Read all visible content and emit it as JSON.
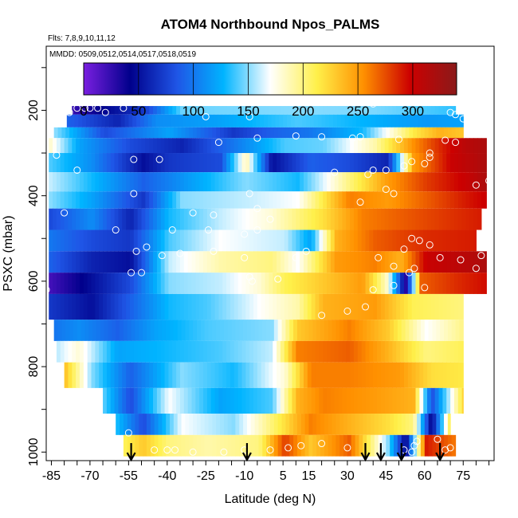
{
  "chart_data": {
    "type": "heatmap",
    "title": "ATOM4 Northbound Npos_PALMS",
    "flights_note": "Flts: 7,8,9,10,11,12",
    "dates_note": "MMDD: 0509,0512,0514,0517,0518,0519",
    "xlabel": "Latitude (deg N)",
    "ylabel": "PSXC (mbar)",
    "xlim": [
      -87,
      87
    ],
    "ylim": [
      1020,
      50
    ],
    "xticks": [
      -85,
      -70,
      -55,
      -40,
      -25,
      -10,
      5,
      15,
      30,
      45,
      60,
      75
    ],
    "yticks": [
      200,
      400,
      600,
      800,
      1000
    ],
    "colorbar": {
      "min": 0,
      "max": 340,
      "ticks": [
        0,
        50,
        100,
        150,
        200,
        250,
        300
      ],
      "colors": [
        "#7a1fe0",
        "#00008b",
        "#1f55e6",
        "#00b4ff",
        "#ffffff",
        "#fff04a",
        "#ff9000",
        "#cc0000",
        "#8b1a1a"
      ]
    },
    "pressure_rows": [
      {
        "p": [
          190,
          210
        ],
        "segments": [
          [
            -77,
            25
          ],
          [
            -50,
            70
          ],
          [
            -35,
            145
          ],
          [
            10,
            150
          ],
          [
            40,
            148
          ],
          [
            60,
            140
          ],
          [
            72,
            135
          ]
        ]
      },
      {
        "p": [
          210,
          240
        ],
        "segments": [
          [
            -79,
            90
          ],
          [
            -60,
            60
          ],
          [
            -45,
            110
          ],
          [
            -20,
            120
          ],
          [
            10,
            140
          ],
          [
            40,
            125
          ],
          [
            60,
            115
          ],
          [
            75,
            120
          ]
        ]
      },
      {
        "p": [
          240,
          265
        ],
        "segments": [
          [
            -84,
            150
          ],
          [
            -65,
            80
          ],
          [
            -40,
            120
          ],
          [
            -15,
            70
          ],
          [
            0,
            90
          ],
          [
            15,
            100
          ],
          [
            35,
            130
          ],
          [
            55,
            215
          ],
          [
            65,
            240
          ],
          [
            75,
            230
          ]
        ]
      },
      {
        "p": [
          265,
          300
        ],
        "segments": [
          [
            -86,
            180
          ],
          [
            -75,
            120
          ],
          [
            -55,
            80
          ],
          [
            -35,
            60
          ],
          [
            -10,
            110
          ],
          [
            5,
            140
          ],
          [
            20,
            145
          ],
          [
            40,
            190
          ],
          [
            55,
            255
          ],
          [
            65,
            285
          ],
          [
            75,
            310
          ],
          [
            84,
            320
          ]
        ]
      },
      {
        "p": [
          300,
          345
        ],
        "segments": [
          [
            -86,
            140
          ],
          [
            -70,
            110
          ],
          [
            -50,
            50
          ],
          [
            -40,
            70
          ],
          [
            -20,
            80
          ],
          [
            -10,
            190
          ],
          [
            0,
            50
          ],
          [
            15,
            90
          ],
          [
            30,
            80
          ],
          [
            45,
            60
          ],
          [
            55,
            250
          ],
          [
            70,
            300
          ],
          [
            84,
            320
          ]
        ]
      },
      {
        "p": [
          345,
          390
        ],
        "segments": [
          [
            -86,
            160
          ],
          [
            -70,
            130
          ],
          [
            -50,
            90
          ],
          [
            -30,
            120
          ],
          [
            -10,
            150
          ],
          [
            10,
            130
          ],
          [
            30,
            200
          ],
          [
            45,
            250
          ],
          [
            60,
            280
          ],
          [
            75,
            300
          ],
          [
            84,
            320
          ]
        ]
      },
      {
        "p": [
          390,
          430
        ],
        "segments": [
          [
            -86,
            150
          ],
          [
            -70,
            120
          ],
          [
            -50,
            70
          ],
          [
            -35,
            150
          ],
          [
            -10,
            160
          ],
          [
            10,
            170
          ],
          [
            30,
            260
          ],
          [
            45,
            250
          ],
          [
            60,
            270
          ],
          [
            75,
            290
          ],
          [
            84,
            300
          ]
        ]
      },
      {
        "p": [
          430,
          480
        ],
        "segments": [
          [
            -86,
            80
          ],
          [
            -70,
            110
          ],
          [
            -55,
            60
          ],
          [
            -40,
            130
          ],
          [
            -20,
            160
          ],
          [
            0,
            180
          ],
          [
            20,
            220
          ],
          [
            35,
            260
          ],
          [
            50,
            270
          ],
          [
            65,
            280
          ],
          [
            82,
            290
          ]
        ]
      },
      {
        "p": [
          480,
          530
        ],
        "segments": [
          [
            -86,
            100
          ],
          [
            -70,
            80
          ],
          [
            -55,
            70
          ],
          [
            -40,
            140
          ],
          [
            -20,
            170
          ],
          [
            5,
            160
          ],
          [
            15,
            120
          ],
          [
            25,
            240
          ],
          [
            40,
            270
          ],
          [
            60,
            285
          ],
          [
            80,
            290
          ]
        ]
      },
      {
        "p": [
          530,
          580
        ],
        "segments": [
          [
            -86,
            90
          ],
          [
            -70,
            60
          ],
          [
            -55,
            50
          ],
          [
            -40,
            160
          ],
          [
            -20,
            190
          ],
          [
            0,
            200
          ],
          [
            10,
            170
          ],
          [
            25,
            250
          ],
          [
            40,
            260
          ],
          [
            50,
            240
          ],
          [
            60,
            300
          ],
          [
            75,
            310
          ],
          [
            84,
            320
          ]
        ]
      },
      {
        "p": [
          580,
          630
        ],
        "segments": [
          [
            -86,
            20
          ],
          [
            -75,
            40
          ],
          [
            -55,
            80
          ],
          [
            -40,
            150
          ],
          [
            -20,
            160
          ],
          [
            -5,
            180
          ],
          [
            5,
            210
          ],
          [
            20,
            230
          ],
          [
            35,
            250
          ],
          [
            45,
            180
          ],
          [
            52,
            30
          ],
          [
            58,
            270
          ],
          [
            72,
            285
          ],
          [
            84,
            295
          ]
        ]
      },
      {
        "p": [
          630,
          690
        ],
        "segments": [
          [
            -86,
            70
          ],
          [
            -70,
            50
          ],
          [
            -55,
            90
          ],
          [
            -40,
            130
          ],
          [
            -25,
            140
          ],
          [
            -5,
            170
          ],
          [
            10,
            190
          ],
          [
            20,
            240
          ],
          [
            40,
            250
          ],
          [
            55,
            210
          ],
          [
            75,
            200
          ]
        ]
      },
      {
        "p": [
          690,
          740
        ],
        "segments": [
          [
            -84,
            100
          ],
          [
            -75,
            110
          ],
          [
            -60,
            90
          ],
          [
            -45,
            120
          ],
          [
            -25,
            140
          ],
          [
            0,
            150
          ],
          [
            10,
            230
          ],
          [
            30,
            260
          ],
          [
            45,
            230
          ],
          [
            60,
            170
          ],
          [
            75,
            200
          ]
        ]
      },
      {
        "p": [
          740,
          790
        ],
        "segments": [
          [
            -83,
            160
          ],
          [
            -75,
            180
          ],
          [
            -60,
            120
          ],
          [
            -40,
            130
          ],
          [
            -20,
            140
          ],
          [
            0,
            160
          ],
          [
            10,
            260
          ],
          [
            30,
            270
          ],
          [
            45,
            240
          ],
          [
            60,
            200
          ],
          [
            75,
            210
          ]
        ]
      },
      {
        "p": [
          790,
          850
        ],
        "segments": [
          [
            -80,
            230
          ],
          [
            -70,
            150
          ],
          [
            -55,
            90
          ],
          [
            -35,
            150
          ],
          [
            -15,
            130
          ],
          [
            5,
            180
          ],
          [
            15,
            260
          ],
          [
            30,
            260
          ],
          [
            50,
            250
          ],
          [
            62,
            220
          ],
          [
            75,
            215
          ]
        ]
      },
      {
        "p": [
          850,
          910
        ],
        "segments": [
          [
            -65,
            140
          ],
          [
            -55,
            80
          ],
          [
            -40,
            170
          ],
          [
            -20,
            120
          ],
          [
            0,
            140
          ],
          [
            10,
            240
          ],
          [
            20,
            260
          ],
          [
            40,
            250
          ],
          [
            55,
            240
          ],
          [
            62,
            80
          ],
          [
            75,
            230
          ]
        ]
      },
      {
        "p": [
          910,
          960
        ],
        "segments": [
          [
            -60,
            130
          ],
          [
            -50,
            80
          ],
          [
            -35,
            170
          ],
          [
            -15,
            150
          ],
          [
            5,
            220
          ],
          [
            15,
            260
          ],
          [
            30,
            240
          ],
          [
            45,
            220
          ],
          [
            55,
            200
          ],
          [
            62,
            40
          ],
          [
            70,
            230
          ]
        ]
      },
      {
        "p": [
          960,
          1010
        ],
        "segments": [
          [
            -57,
            210
          ],
          [
            -50,
            230
          ],
          [
            -40,
            200
          ],
          [
            -25,
            190
          ],
          [
            -5,
            200
          ],
          [
            5,
            280
          ],
          [
            15,
            230
          ],
          [
            30,
            270
          ],
          [
            45,
            150
          ],
          [
            52,
            40
          ],
          [
            60,
            290
          ],
          [
            72,
            260
          ]
        ]
      }
    ],
    "arrow_latitudes": [
      -54,
      -9,
      37,
      43,
      51,
      66
    ],
    "points": [
      [
        -75,
        195
      ],
      [
        -72,
        195
      ],
      [
        -70,
        195
      ],
      [
        -67,
        195
      ],
      [
        -64,
        205
      ],
      [
        -78,
        205
      ],
      [
        -80,
        205
      ],
      [
        -57,
        195
      ],
      [
        -84,
        215
      ],
      [
        -25,
        215
      ],
      [
        -8,
        215
      ],
      [
        40,
        185
      ],
      [
        70,
        205
      ],
      [
        72,
        210
      ],
      [
        75,
        220
      ],
      [
        -20,
        275
      ],
      [
        -5,
        265
      ],
      [
        10,
        260
      ],
      [
        20,
        262
      ],
      [
        32,
        265
      ],
      [
        35,
        262
      ],
      [
        50,
        268
      ],
      [
        68,
        270
      ],
      [
        72,
        275
      ],
      [
        -53,
        315
      ],
      [
        -43,
        315
      ],
      [
        25,
        345
      ],
      [
        38,
        350
      ],
      [
        40,
        340
      ],
      [
        45,
        340
      ],
      [
        52,
        330
      ],
      [
        55,
        320
      ],
      [
        60,
        325
      ],
      [
        62,
        310
      ],
      [
        62,
        300
      ],
      [
        -83,
        305
      ],
      [
        -75,
        340
      ],
      [
        -53,
        395
      ],
      [
        -8,
        395
      ],
      [
        45,
        385
      ],
      [
        48,
        395
      ],
      [
        80,
        375
      ],
      [
        85,
        365
      ],
      [
        35,
        415
      ],
      [
        -80,
        440
      ],
      [
        -30,
        440
      ],
      [
        -22,
        445
      ],
      [
        -5,
        430
      ],
      [
        0,
        455
      ],
      [
        -38,
        480
      ],
      [
        -60,
        480
      ],
      [
        -24,
        480
      ],
      [
        -10,
        490
      ],
      [
        -5,
        480
      ],
      [
        55,
        500
      ],
      [
        58,
        505
      ],
      [
        62,
        515
      ],
      [
        52,
        525
      ],
      [
        66,
        545
      ],
      [
        82,
        540
      ],
      [
        74,
        550
      ],
      [
        -52,
        530
      ],
      [
        -48,
        520
      ],
      [
        -42,
        540
      ],
      [
        -35,
        535
      ],
      [
        -22,
        530
      ],
      [
        -10,
        545
      ],
      [
        10,
        545
      ],
      [
        14,
        530
      ],
      [
        42,
        545
      ],
      [
        56,
        570
      ],
      [
        54,
        580
      ],
      [
        48,
        565
      ],
      [
        -50,
        580
      ],
      [
        -54,
        580
      ],
      [
        -8,
        590
      ],
      [
        -7,
        600
      ],
      [
        3,
        595
      ],
      [
        40,
        620
      ],
      [
        48,
        610
      ],
      [
        60,
        615
      ],
      [
        -87,
        620
      ],
      [
        80,
        570
      ],
      [
        20,
        680
      ],
      [
        30,
        670
      ],
      [
        37,
        660
      ],
      [
        -82,
        815
      ],
      [
        -55,
        955
      ],
      [
        -45,
        995
      ],
      [
        -40,
        995
      ],
      [
        -37,
        995
      ],
      [
        -30,
        1000
      ],
      [
        -18,
        1000
      ],
      [
        -10,
        995
      ],
      [
        0,
        995
      ],
      [
        7,
        990
      ],
      [
        12,
        985
      ],
      [
        20,
        980
      ],
      [
        30,
        990
      ],
      [
        52,
        995
      ],
      [
        55,
        1000
      ],
      [
        56,
        985
      ],
      [
        57,
        975
      ],
      [
        65,
        970
      ],
      [
        68,
        995
      ],
      [
        70,
        990
      ],
      [
        75,
        1000
      ],
      [
        80,
        990
      ]
    ]
  }
}
